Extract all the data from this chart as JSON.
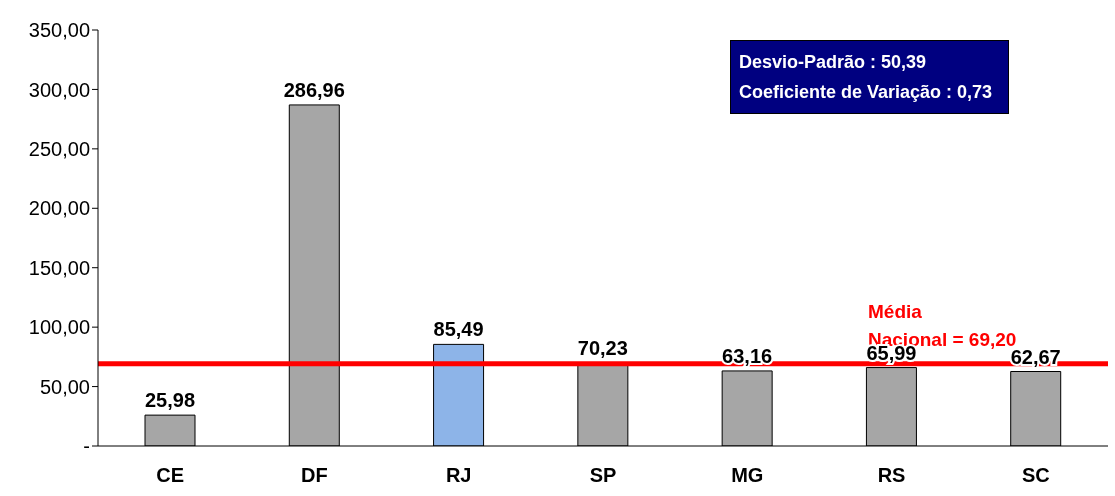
{
  "chart_data": {
    "type": "bar",
    "categories": [
      "CE",
      "DF",
      "RJ",
      "SP",
      "MG",
      "RS",
      "SC"
    ],
    "values": [
      25.98,
      286.96,
      85.49,
      70.23,
      63.16,
      65.99,
      62.67
    ],
    "colors": [
      "#a6a6a6",
      "#a6a6a6",
      "#8db4e8",
      "#a6a6a6",
      "#a6a6a6",
      "#a6a6a6",
      "#a6a6a6"
    ],
    "value_labels": [
      "25,98",
      "286,96",
      "85,49",
      "70,23",
      "63,16",
      "65,99",
      "62,67"
    ],
    "ylim": [
      0,
      350
    ],
    "yticks": [
      {
        "value": 0,
        "label": "-"
      },
      {
        "value": 50,
        "label": "50,00"
      },
      {
        "value": 100,
        "label": "100,00"
      },
      {
        "value": 150,
        "label": "150,00"
      },
      {
        "value": 200,
        "label": "200,00"
      },
      {
        "value": 250,
        "label": "250,00"
      },
      {
        "value": 300,
        "label": "300,00"
      },
      {
        "value": 350,
        "label": "350,00"
      }
    ],
    "ref_lines": [
      {
        "axis": "y",
        "value": 69.2,
        "label": "Média Nacional = 69,20",
        "color": "#ff0000"
      }
    ],
    "annotations": [
      "Desvio-Padrão : 50,39",
      "Coeficiente de Variação : 0,73"
    ],
    "grid": false
  }
}
